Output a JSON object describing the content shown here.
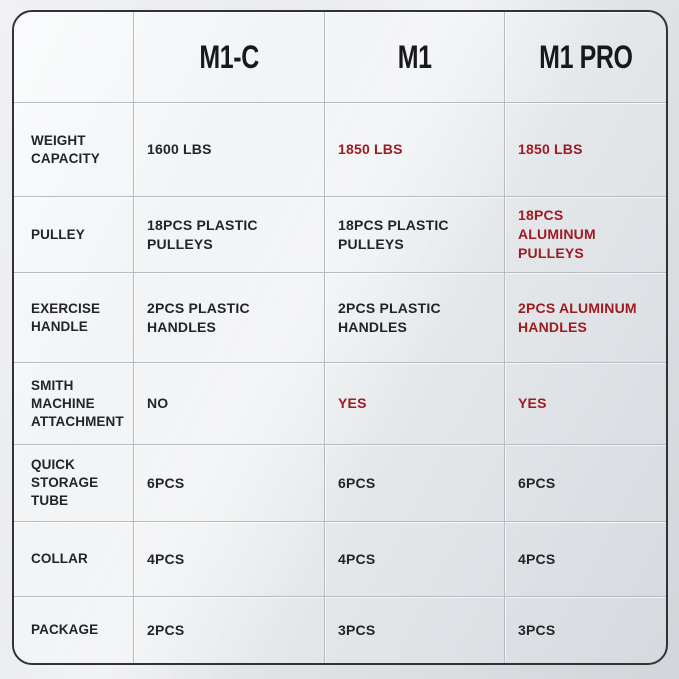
{
  "palette": {
    "highlight_red": "#9d1b21",
    "text_dark": "#232428",
    "header_text": "#18191c",
    "gridline": "#b7bac0",
    "outer_border": "#303236"
  },
  "chart_data": {
    "type": "table",
    "title": "",
    "columns": [
      "",
      "M1-C",
      "M1",
      "M1 PRO"
    ],
    "rows": [
      {
        "label": "WEIGHT\nCAPACITY",
        "values": [
          {
            "text": "1600 LBS",
            "hex": "#232428"
          },
          {
            "text": "1850 LBS",
            "hex": "#9d1b21"
          },
          {
            "text": "1850 LBS",
            "hex": "#9d1b21"
          }
        ]
      },
      {
        "label": "PULLEY",
        "values": [
          {
            "text": "18PCS PLASTIC\nPULLEYS",
            "hex": "#232428"
          },
          {
            "text": "18PCS PLASTIC\nPULLEYS",
            "hex": "#232428"
          },
          {
            "text": "18PCS\nALUMINUM PULLEYS",
            "hex": "#9d1b21"
          }
        ]
      },
      {
        "label": "EXERCISE\nHANDLE",
        "values": [
          {
            "text": "2PCS PLASTIC\nHANDLES",
            "hex": "#232428"
          },
          {
            "text": "2PCS PLASTIC\nHANDLES",
            "hex": "#232428"
          },
          {
            "text": "2PCS ALUMINUM\nHANDLES",
            "hex": "#9d1b21"
          }
        ]
      },
      {
        "label": "SMITH MACHINE\nATTACHMENT",
        "values": [
          {
            "text": "NO",
            "hex": "#232428"
          },
          {
            "text": "YES",
            "hex": "#9d1b21"
          },
          {
            "text": "YES",
            "hex": "#9d1b21"
          }
        ]
      },
      {
        "label": "QUICK\nSTORAGE TUBE",
        "values": [
          {
            "text": "6PCS",
            "hex": "#232428"
          },
          {
            "text": "6PCS",
            "hex": "#232428"
          },
          {
            "text": "6PCS",
            "hex": "#232428"
          }
        ]
      },
      {
        "label": "COLLAR",
        "values": [
          {
            "text": "4PCS",
            "hex": "#232428"
          },
          {
            "text": "4PCS",
            "hex": "#232428"
          },
          {
            "text": "4PCS",
            "hex": "#232428"
          }
        ]
      },
      {
        "label": "PACKAGE",
        "values": [
          {
            "text": "2PCS",
            "hex": "#232428"
          },
          {
            "text": "3PCS",
            "hex": "#232428"
          },
          {
            "text": "3PCS",
            "hex": "#232428"
          }
        ]
      }
    ]
  }
}
